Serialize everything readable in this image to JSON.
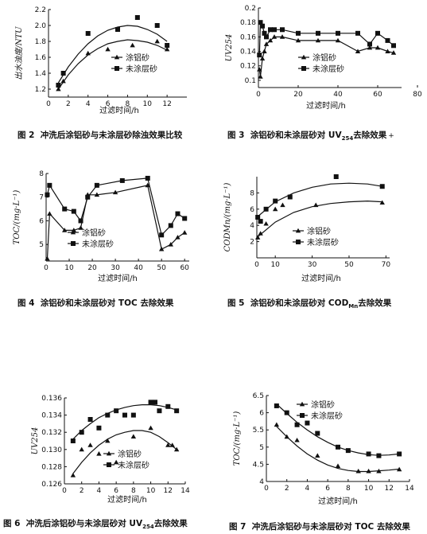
{
  "figures": [
    {
      "id": "fig2",
      "caption": {
        "prefix": "图 2",
        "text": "冲洗后涂铝砂与未涂层砂除浊效果比较"
      }
    },
    {
      "id": "fig3",
      "caption": {
        "prefix": "图 3",
        "text": "涂铝砂和未涂层砂对 UV",
        "sub": "254",
        "suffix": "去除效果",
        "mark": "+"
      }
    },
    {
      "id": "fig4",
      "caption": {
        "prefix": "图 4",
        "text": "涂铝砂和未涂层砂对 TOC 去除效果"
      }
    },
    {
      "id": "fig5",
      "caption": {
        "prefix": "图 5",
        "text": "涂铝砂和未涂层砂对 COD",
        "sub": "Mn",
        "suffix": "去除效果"
      }
    },
    {
      "id": "fig6",
      "caption": {
        "prefix": "图 6",
        "text": "冲洗后涂铝砂与未涂层砂对 UV",
        "sub": "254",
        "suffix": "去除效果"
      }
    },
    {
      "id": "fig7",
      "caption": {
        "prefix": "图 7",
        "text": "冲洗后涂铝砂与未涂层砂对 TOC 去除效果"
      }
    }
  ],
  "chart_data": [
    {
      "id": "fig2",
      "type": "scatter",
      "xlabel": "过滤时间/h",
      "ylabel": "出水浊度/NTU",
      "xlim": [
        0,
        14
      ],
      "ylim": [
        1.1,
        2.2
      ],
      "xticks": [
        "0",
        "2",
        "4",
        "6",
        "8",
        "10",
        "12"
      ],
      "yticks": [
        "1.2",
        "1.4",
        "1.6",
        "1.8",
        "2.0",
        "2.2"
      ],
      "legend": [
        "涂铝砂",
        "未涂层砂"
      ],
      "series": [
        {
          "name": "涂铝砂",
          "marker": "triangle",
          "x": [
            1,
            1.5,
            4,
            6,
            8.5,
            11,
            12
          ],
          "y": [
            1.2,
            1.3,
            1.65,
            1.7,
            1.75,
            1.8,
            1.7
          ],
          "fit": [
            [
              1,
              1.2
            ],
            [
              2,
              1.38
            ],
            [
              3,
              1.52
            ],
            [
              4,
              1.63
            ],
            [
              5,
              1.71
            ],
            [
              6,
              1.77
            ],
            [
              7,
              1.8
            ],
            [
              8,
              1.82
            ],
            [
              9,
              1.81
            ],
            [
              10,
              1.79
            ],
            [
              11,
              1.75
            ],
            [
              12,
              1.69
            ]
          ]
        },
        {
          "name": "未涂层砂",
          "marker": "square",
          "x": [
            1,
            1.5,
            4,
            7,
            9,
            11,
            12
          ],
          "y": [
            1.25,
            1.4,
            1.9,
            1.95,
            2.1,
            2.0,
            1.75
          ],
          "fit": [
            [
              1,
              1.28
            ],
            [
              2,
              1.48
            ],
            [
              3,
              1.64
            ],
            [
              4,
              1.77
            ],
            [
              5,
              1.87
            ],
            [
              6,
              1.94
            ],
            [
              7,
              1.98
            ],
            [
              8,
              2.0
            ],
            [
              9,
              1.99
            ],
            [
              10,
              1.95
            ],
            [
              11,
              1.89
            ],
            [
              12,
              1.8
            ]
          ]
        }
      ]
    },
    {
      "id": "fig3",
      "type": "line",
      "xlabel": "过滤时间/h",
      "ylabel": "UV254",
      "xlim": [
        0,
        72
      ],
      "ylim": [
        0.09,
        0.2
      ],
      "xticks": [
        "0",
        "20",
        "40",
        "60",
        "80"
      ],
      "yticks": [
        "0.1",
        "0.12",
        "0.14",
        "0.16",
        "0.18",
        "0.2"
      ],
      "legend": [
        "涂铝砂",
        "未涂层砂"
      ],
      "series": [
        {
          "name": "涂铝砂",
          "marker": "triangle",
          "x": [
            0.5,
            1,
            2,
            3,
            4,
            6,
            8,
            12,
            20,
            30,
            40,
            50,
            56,
            60,
            65,
            68
          ],
          "y": [
            0.115,
            0.105,
            0.13,
            0.14,
            0.15,
            0.155,
            0.16,
            0.16,
            0.155,
            0.155,
            0.155,
            0.14,
            0.145,
            0.145,
            0.14,
            0.138
          ]
        },
        {
          "name": "未涂层砂",
          "marker": "square",
          "x": [
            0.5,
            1,
            2,
            3,
            4,
            6,
            8,
            12,
            20,
            30,
            40,
            50,
            56,
            60,
            65,
            68
          ],
          "y": [
            0.135,
            0.18,
            0.175,
            0.165,
            0.16,
            0.17,
            0.17,
            0.17,
            0.165,
            0.165,
            0.165,
            0.165,
            0.15,
            0.165,
            0.155,
            0.148
          ]
        }
      ]
    },
    {
      "id": "fig4",
      "type": "line",
      "xlabel": "过滤时间/h",
      "ylabel": "TOC/(mg·L⁻¹)",
      "xlim": [
        0,
        62
      ],
      "ylim": [
        4.3,
        8
      ],
      "xticks": [
        "0",
        "10",
        "20",
        "30",
        "40",
        "50",
        "60"
      ],
      "yticks": [
        "5",
        "6",
        "7",
        "8"
      ],
      "legend": [
        "涂铝砂",
        "未涂层砂"
      ],
      "series": [
        {
          "name": "涂铝砂",
          "marker": "triangle",
          "x": [
            0.5,
            1.5,
            8,
            12,
            15,
            18,
            22,
            30,
            44,
            50,
            54,
            57,
            60
          ],
          "y": [
            4.4,
            6.3,
            5.6,
            5.6,
            5.7,
            7.1,
            7.1,
            7.2,
            7.5,
            4.8,
            5.0,
            5.3,
            5.5
          ]
        },
        {
          "name": "未涂层砂",
          "marker": "square",
          "x": [
            0.5,
            1.5,
            8,
            12,
            15,
            18,
            22,
            33,
            44,
            50,
            54,
            57,
            60
          ],
          "y": [
            7.1,
            7.5,
            6.5,
            6.4,
            6.0,
            7.0,
            7.5,
            7.7,
            7.8,
            5.4,
            5.8,
            6.3,
            6.1
          ]
        }
      ]
    },
    {
      "id": "fig5",
      "type": "scatter",
      "xlabel": "过滤时间/h",
      "ylabel": "CODMn/(mg·L⁻¹)",
      "xlim": [
        0,
        72
      ],
      "ylim": [
        0,
        10
      ],
      "xticks": [
        "0",
        "10",
        "30",
        "50",
        "70"
      ],
      "yticks": [
        "2",
        "4",
        "6",
        "8"
      ],
      "legend": [
        "涂铝砂",
        "未涂层砂"
      ],
      "series": [
        {
          "name": "涂铝砂",
          "marker": "triangle",
          "x": [
            0.5,
            2,
            5,
            10,
            14,
            32,
            68
          ],
          "y": [
            2.5,
            3.0,
            4.2,
            6.0,
            6.5,
            6.5,
            6.8
          ],
          "fit": [
            [
              0,
              2.5
            ],
            [
              10,
              4.4
            ],
            [
              20,
              5.6
            ],
            [
              30,
              6.3
            ],
            [
              40,
              6.7
            ],
            [
              50,
              6.9
            ],
            [
              60,
              7.0
            ],
            [
              68,
              6.9
            ]
          ]
        },
        {
          "name": "未涂层砂",
          "marker": "square",
          "x": [
            0.5,
            2,
            5,
            10,
            18,
            43,
            68
          ],
          "y": [
            5.0,
            4.5,
            6.0,
            7.0,
            7.5,
            10.0,
            8.8
          ],
          "fit": [
            [
              0,
              5.0
            ],
            [
              10,
              6.9
            ],
            [
              20,
              8.0
            ],
            [
              30,
              8.7
            ],
            [
              40,
              9.1
            ],
            [
              50,
              9.2
            ],
            [
              60,
              9.1
            ],
            [
              68,
              8.8
            ]
          ]
        }
      ]
    },
    {
      "id": "fig6",
      "type": "scatter",
      "xlabel": "过滤时间/h",
      "ylabel": "UV254",
      "xlim": [
        0,
        14
      ],
      "ylim": [
        0.126,
        0.136
      ],
      "xticks": [
        "0",
        "2",
        "4",
        "6",
        "8",
        "10",
        "12",
        "14"
      ],
      "yticks": [
        "0.126",
        "0.128",
        "0.130",
        "0.132",
        "0.134",
        "0.136"
      ],
      "legend": [
        "涂铝砂",
        "未涂层砂"
      ],
      "series": [
        {
          "name": "涂铝砂",
          "marker": "triangle",
          "x": [
            1,
            2,
            3,
            4,
            5,
            6,
            8,
            10,
            12,
            12.5,
            13
          ],
          "y": [
            0.127,
            0.13,
            0.1305,
            0.1295,
            0.131,
            0.1285,
            0.1315,
            0.1325,
            0.1305,
            0.1305,
            0.13
          ],
          "fit": [
            [
              1,
              0.1272
            ],
            [
              2,
              0.1285
            ],
            [
              3,
              0.1296
            ],
            [
              4,
              0.1305
            ],
            [
              5,
              0.1312
            ],
            [
              6,
              0.1317
            ],
            [
              7,
              0.132
            ],
            [
              8,
              0.1322
            ],
            [
              9,
              0.1322
            ],
            [
              10,
              0.132
            ],
            [
              11,
              0.1315
            ],
            [
              12,
              0.1308
            ],
            [
              13,
              0.13
            ]
          ]
        },
        {
          "name": "未涂层砂",
          "marker": "square",
          "x": [
            1,
            2,
            3,
            4,
            5,
            6,
            7,
            8,
            10,
            10.5,
            11,
            12,
            13
          ],
          "y": [
            0.131,
            0.132,
            0.1335,
            0.1325,
            0.134,
            0.1345,
            0.134,
            0.134,
            0.1355,
            0.1355,
            0.1345,
            0.135,
            0.1345
          ],
          "fit": [
            [
              1,
              0.1312
            ],
            [
              2,
              0.1322
            ],
            [
              3,
              0.133
            ],
            [
              4,
              0.1337
            ],
            [
              5,
              0.1342
            ],
            [
              6,
              0.1346
            ],
            [
              7,
              0.1349
            ],
            [
              8,
              0.1351
            ],
            [
              9,
              0.1352
            ],
            [
              10,
              0.1352
            ],
            [
              11,
              0.1351
            ],
            [
              12,
              0.1349
            ],
            [
              13,
              0.1346
            ]
          ]
        }
      ]
    },
    {
      "id": "fig7",
      "type": "scatter",
      "xlabel": "过滤时间/h",
      "ylabel": "TOC/(mg·L⁻¹)",
      "xlim": [
        0,
        14
      ],
      "ylim": [
        4,
        6.5
      ],
      "xticks": [
        "0",
        "2",
        "4",
        "6",
        "8",
        "10",
        "12",
        "14"
      ],
      "yticks": [
        "4",
        "4.5",
        "5",
        "5.5",
        "6",
        "6.5"
      ],
      "legend": [
        "涂铝砂",
        "未涂层砂"
      ],
      "series": [
        {
          "name": "涂铝砂",
          "marker": "triangle",
          "x": [
            1,
            2,
            3,
            5,
            7,
            9,
            10,
            11,
            13
          ],
          "y": [
            5.65,
            5.3,
            5.2,
            4.75,
            4.45,
            4.3,
            4.3,
            4.3,
            4.35
          ],
          "fit": [
            [
              1,
              5.6
            ],
            [
              2,
              5.3
            ],
            [
              3,
              5.03
            ],
            [
              4,
              4.8
            ],
            [
              5,
              4.62
            ],
            [
              6,
              4.48
            ],
            [
              7,
              4.38
            ],
            [
              8,
              4.32
            ],
            [
              9,
              4.29
            ],
            [
              10,
              4.29
            ],
            [
              11,
              4.31
            ],
            [
              12,
              4.33
            ],
            [
              13,
              4.36
            ]
          ]
        },
        {
          "name": "未涂层砂",
          "marker": "square",
          "x": [
            1,
            2,
            3,
            4,
            5,
            7,
            8,
            10,
            11,
            13
          ],
          "y": [
            6.2,
            6.0,
            5.65,
            5.7,
            5.4,
            5.0,
            4.9,
            4.8,
            4.75,
            4.8
          ],
          "fit": [
            [
              1,
              6.25
            ],
            [
              2,
              5.98
            ],
            [
              3,
              5.72
            ],
            [
              4,
              5.5
            ],
            [
              5,
              5.3
            ],
            [
              6,
              5.14
            ],
            [
              7,
              5.0
            ],
            [
              8,
              4.9
            ],
            [
              9,
              4.83
            ],
            [
              10,
              4.78
            ],
            [
              11,
              4.76
            ],
            [
              12,
              4.77
            ],
            [
              13,
              4.8
            ]
          ]
        }
      ]
    }
  ]
}
